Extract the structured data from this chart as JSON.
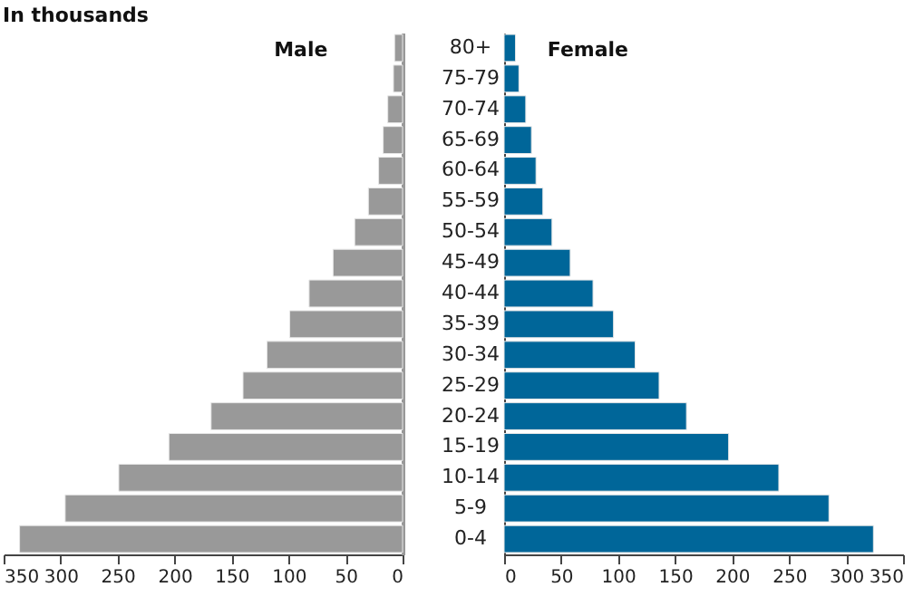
{
  "chart_data": [
    {
      "type": "bar",
      "orientation": "horizontal",
      "title": "In thousands",
      "categories": [
        null,
        null,
        null,
        null,
        null,
        null,
        null,
        null,
        null,
        null,
        null,
        null,
        null,
        null,
        null,
        null,
        null
      ],
      "series": [
        {
          "name": "Male",
          "color": "#999999",
          "values": [
            7,
            8,
            13,
            17,
            21,
            30,
            42,
            61,
            82,
            99,
            119,
            140,
            168,
            205,
            249,
            296,
            336
          ]
        }
      ],
      "xlim": [
        350,
        0
      ],
      "xticks": [
        350,
        300,
        250,
        200,
        150,
        100,
        50,
        0
      ]
    },
    {
      "type": "bar",
      "orientation": "horizontal",
      "categories": [
        "80+",
        "75-79",
        "70-74",
        "65-69",
        "60-64",
        "55-59",
        "50-54",
        "45-49",
        "40-44",
        "35-39",
        "30-34",
        "25-29",
        "20-24",
        "15-19",
        "10-14",
        "5-9",
        "0-4"
      ],
      "series": [
        {
          "name": "Female",
          "color": "#006699",
          "values": [
            10,
            13,
            19,
            24,
            28,
            34,
            42,
            58,
            78,
            96,
            115,
            136,
            160,
            197,
            241,
            285,
            324
          ]
        }
      ],
      "xlim": [
        0,
        350
      ],
      "xticks": [
        0,
        50,
        100,
        150,
        200,
        250,
        300,
        350
      ]
    }
  ]
}
